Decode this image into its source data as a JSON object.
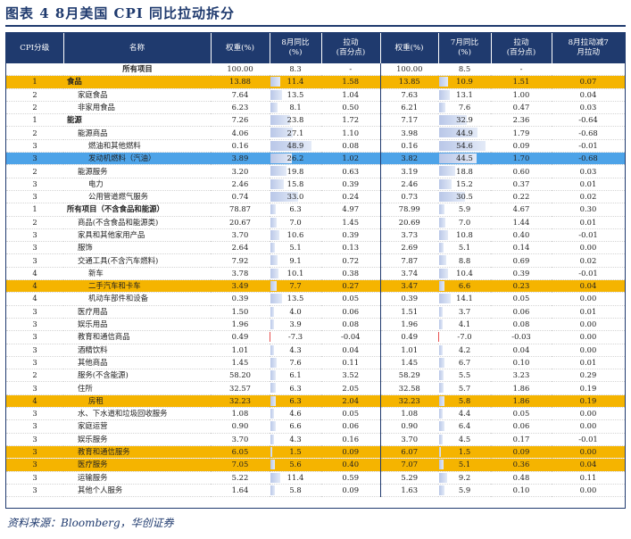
{
  "title": "图表 4   8月美国 CPI 同比拉动拆分",
  "source": "资料来源：Bloomberg，华创证券",
  "headers": [
    "CPI分级",
    "名称",
    "权重(%)",
    "8月同比\n(%)",
    "拉动\n(百分点)",
    "权重(%)",
    "7月同比\n(%)",
    "拉动\n(百分点)",
    "8月拉动减7\n月拉动"
  ],
  "rows": [
    {
      "level": "",
      "name": "所有项目",
      "w8": "100.00",
      "y8": "8.3",
      "p8": "-",
      "w7": "100.00",
      "y7": "8.5",
      "p7": "-",
      "diff": "",
      "style": "bold-center"
    },
    {
      "level": "1",
      "name": "食品",
      "w8": "13.88",
      "y8": "11.4",
      "p8": "1.58",
      "w7": "13.85",
      "y7": "10.9",
      "p7": "1.51",
      "diff": "0.07",
      "style": "yellow"
    },
    {
      "level": "2",
      "name": "家庭食品",
      "w8": "7.64",
      "y8": "13.5",
      "p8": "1.04",
      "w7": "7.63",
      "y7": "13.1",
      "p7": "1.00",
      "diff": "0.04",
      "indent": 1
    },
    {
      "level": "2",
      "name": "非家用食品",
      "w8": "6.23",
      "y8": "8.1",
      "p8": "0.50",
      "w7": "6.21",
      "y7": "7.6",
      "p7": "0.47",
      "diff": "0.03",
      "indent": 1
    },
    {
      "level": "1",
      "name": "能源",
      "w8": "7.26",
      "y8": "23.8",
      "p8": "1.72",
      "w7": "7.17",
      "y7": "32.9",
      "p7": "2.36",
      "diff": "-0.64"
    },
    {
      "level": "2",
      "name": "能源商品",
      "w8": "4.06",
      "y8": "27.1",
      "p8": "1.10",
      "w7": "3.98",
      "y7": "44.9",
      "p7": "1.79",
      "diff": "-0.68",
      "indent": 1
    },
    {
      "level": "3",
      "name": "燃油和其他燃料",
      "w8": "0.16",
      "y8": "48.9",
      "p8": "0.08",
      "w7": "0.16",
      "y7": "54.6",
      "p7": "0.09",
      "diff": "-0.01",
      "indent": 2
    },
    {
      "level": "3",
      "name": "发动机燃料（汽油）",
      "w8": "3.89",
      "y8": "26.2",
      "p8": "1.02",
      "w7": "3.82",
      "y7": "44.5",
      "p7": "1.70",
      "diff": "-0.68",
      "style": "blue",
      "indent": 2
    },
    {
      "level": "2",
      "name": "能源服务",
      "w8": "3.20",
      "y8": "19.8",
      "p8": "0.63",
      "w7": "3.19",
      "y7": "18.8",
      "p7": "0.60",
      "diff": "0.03",
      "indent": 1
    },
    {
      "level": "3",
      "name": "电力",
      "w8": "2.46",
      "y8": "15.8",
      "p8": "0.39",
      "w7": "2.46",
      "y7": "15.2",
      "p7": "0.37",
      "diff": "0.01",
      "indent": 2
    },
    {
      "level": "3",
      "name": "公用管道燃气服务",
      "w8": "0.74",
      "y8": "33.0",
      "p8": "0.24",
      "w7": "0.73",
      "y7": "30.5",
      "p7": "0.22",
      "diff": "0.02",
      "indent": 2
    },
    {
      "level": "1",
      "name": "所有项目（不含食品和能源）",
      "w8": "78.87",
      "y8": "6.3",
      "p8": "4.97",
      "w7": "78.99",
      "y7": "5.9",
      "p7": "4.67",
      "diff": "0.30",
      "style": "bold"
    },
    {
      "level": "2",
      "name": "商品(不含食品和能源类)",
      "w8": "20.67",
      "y8": "7.0",
      "p8": "1.45",
      "w7": "20.69",
      "y7": "7.0",
      "p7": "1.44",
      "diff": "0.01",
      "indent": 1
    },
    {
      "level": "3",
      "name": "家具和其他家用产品",
      "w8": "3.70",
      "y8": "10.6",
      "p8": "0.39",
      "w7": "3.73",
      "y7": "10.8",
      "p7": "0.40",
      "diff": "-0.01",
      "indent": 1
    },
    {
      "level": "3",
      "name": "服饰",
      "w8": "2.64",
      "y8": "5.1",
      "p8": "0.13",
      "w7": "2.69",
      "y7": "5.1",
      "p7": "0.14",
      "diff": "0.00",
      "indent": 1
    },
    {
      "level": "3",
      "name": "交通工具(不含汽车燃料)",
      "w8": "7.92",
      "y8": "9.1",
      "p8": "0.72",
      "w7": "7.87",
      "y7": "8.8",
      "p7": "0.69",
      "diff": "0.02",
      "indent": 1
    },
    {
      "level": "4",
      "name": "新车",
      "w8": "3.78",
      "y8": "10.1",
      "p8": "0.38",
      "w7": "3.74",
      "y7": "10.4",
      "p7": "0.39",
      "diff": "-0.01",
      "indent": 2
    },
    {
      "level": "4",
      "name": "二手汽车和卡车",
      "w8": "3.49",
      "y8": "7.7",
      "p8": "0.27",
      "w7": "3.47",
      "y7": "6.6",
      "p7": "0.23",
      "diff": "0.04",
      "style": "yellow",
      "indent": 2
    },
    {
      "level": "4",
      "name": "机动车部件和设备",
      "w8": "0.39",
      "y8": "13.5",
      "p8": "0.05",
      "w7": "0.39",
      "y7": "14.1",
      "p7": "0.05",
      "diff": "0.00",
      "indent": 2
    },
    {
      "level": "3",
      "name": "医疗用品",
      "w8": "1.50",
      "y8": "4.0",
      "p8": "0.06",
      "w7": "1.51",
      "y7": "3.7",
      "p7": "0.06",
      "diff": "0.01",
      "indent": 1
    },
    {
      "level": "3",
      "name": "娱乐用品",
      "w8": "1.96",
      "y8": "3.9",
      "p8": "0.08",
      "w7": "1.96",
      "y7": "4.1",
      "p7": "0.08",
      "diff": "0.00",
      "indent": 1
    },
    {
      "level": "3",
      "name": "教育和通信商品",
      "w8": "0.49",
      "y8": "-7.3",
      "p8": "-0.04",
      "w7": "0.49",
      "y7": "-7.0",
      "p7": "-0.03",
      "diff": "0.00",
      "indent": 1
    },
    {
      "level": "3",
      "name": "酒精饮料",
      "w8": "1.01",
      "y8": "4.3",
      "p8": "0.04",
      "w7": "1.01",
      "y7": "4.2",
      "p7": "0.04",
      "diff": "0.00",
      "indent": 1
    },
    {
      "level": "3",
      "name": "其他商品",
      "w8": "1.45",
      "y8": "7.6",
      "p8": "0.11",
      "w7": "1.45",
      "y7": "6.7",
      "p7": "0.10",
      "diff": "0.01",
      "indent": 1
    },
    {
      "level": "2",
      "name": "服务(不含能源)",
      "w8": "58.20",
      "y8": "6.1",
      "p8": "3.52",
      "w7": "58.29",
      "y7": "5.5",
      "p7": "3.23",
      "diff": "0.29",
      "indent": 1
    },
    {
      "level": "3",
      "name": "住所",
      "w8": "32.57",
      "y8": "6.3",
      "p8": "2.05",
      "w7": "32.58",
      "y7": "5.7",
      "p7": "1.86",
      "diff": "0.19",
      "indent": 1
    },
    {
      "level": "4",
      "name": "房租",
      "w8": "32.23",
      "y8": "6.3",
      "p8": "2.04",
      "w7": "32.23",
      "y7": "5.8",
      "p7": "1.86",
      "diff": "0.19",
      "style": "yellow",
      "indent": 2
    },
    {
      "level": "3",
      "name": "水、下水道和垃圾回收服务",
      "w8": "1.08",
      "y8": "4.6",
      "p8": "0.05",
      "w7": "1.08",
      "y7": "4.4",
      "p7": "0.05",
      "diff": "0.00",
      "indent": 1
    },
    {
      "level": "3",
      "name": "家庭运营",
      "w8": "0.90",
      "y8": "6.6",
      "p8": "0.06",
      "w7": "0.90",
      "y7": "6.4",
      "p7": "0.06",
      "diff": "0.00",
      "indent": 1
    },
    {
      "level": "3",
      "name": "娱乐服务",
      "w8": "3.70",
      "y8": "4.3",
      "p8": "0.16",
      "w7": "3.70",
      "y7": "4.5",
      "p7": "0.17",
      "diff": "-0.01",
      "indent": 1
    },
    {
      "level": "3",
      "name": "教育和通信服务",
      "w8": "6.05",
      "y8": "1.5",
      "p8": "0.09",
      "w7": "6.07",
      "y7": "1.5",
      "p7": "0.09",
      "diff": "0.00",
      "style": "yellow",
      "indent": 1
    },
    {
      "level": "3",
      "name": "医疗服务",
      "w8": "7.05",
      "y8": "5.6",
      "p8": "0.40",
      "w7": "7.07",
      "y7": "5.1",
      "p7": "0.36",
      "diff": "0.04",
      "style": "yellow",
      "indent": 1
    },
    {
      "level": "3",
      "name": "运输服务",
      "w8": "5.22",
      "y8": "11.4",
      "p8": "0.59",
      "w7": "5.29",
      "y7": "9.2",
      "p7": "0.48",
      "diff": "0.11",
      "indent": 1
    },
    {
      "level": "3",
      "name": "其他个人服务",
      "w8": "1.64",
      "y8": "5.8",
      "p8": "0.09",
      "w7": "1.63",
      "y7": "5.9",
      "p7": "0.10",
      "diff": "0.00",
      "indent": 1
    }
  ]
}
